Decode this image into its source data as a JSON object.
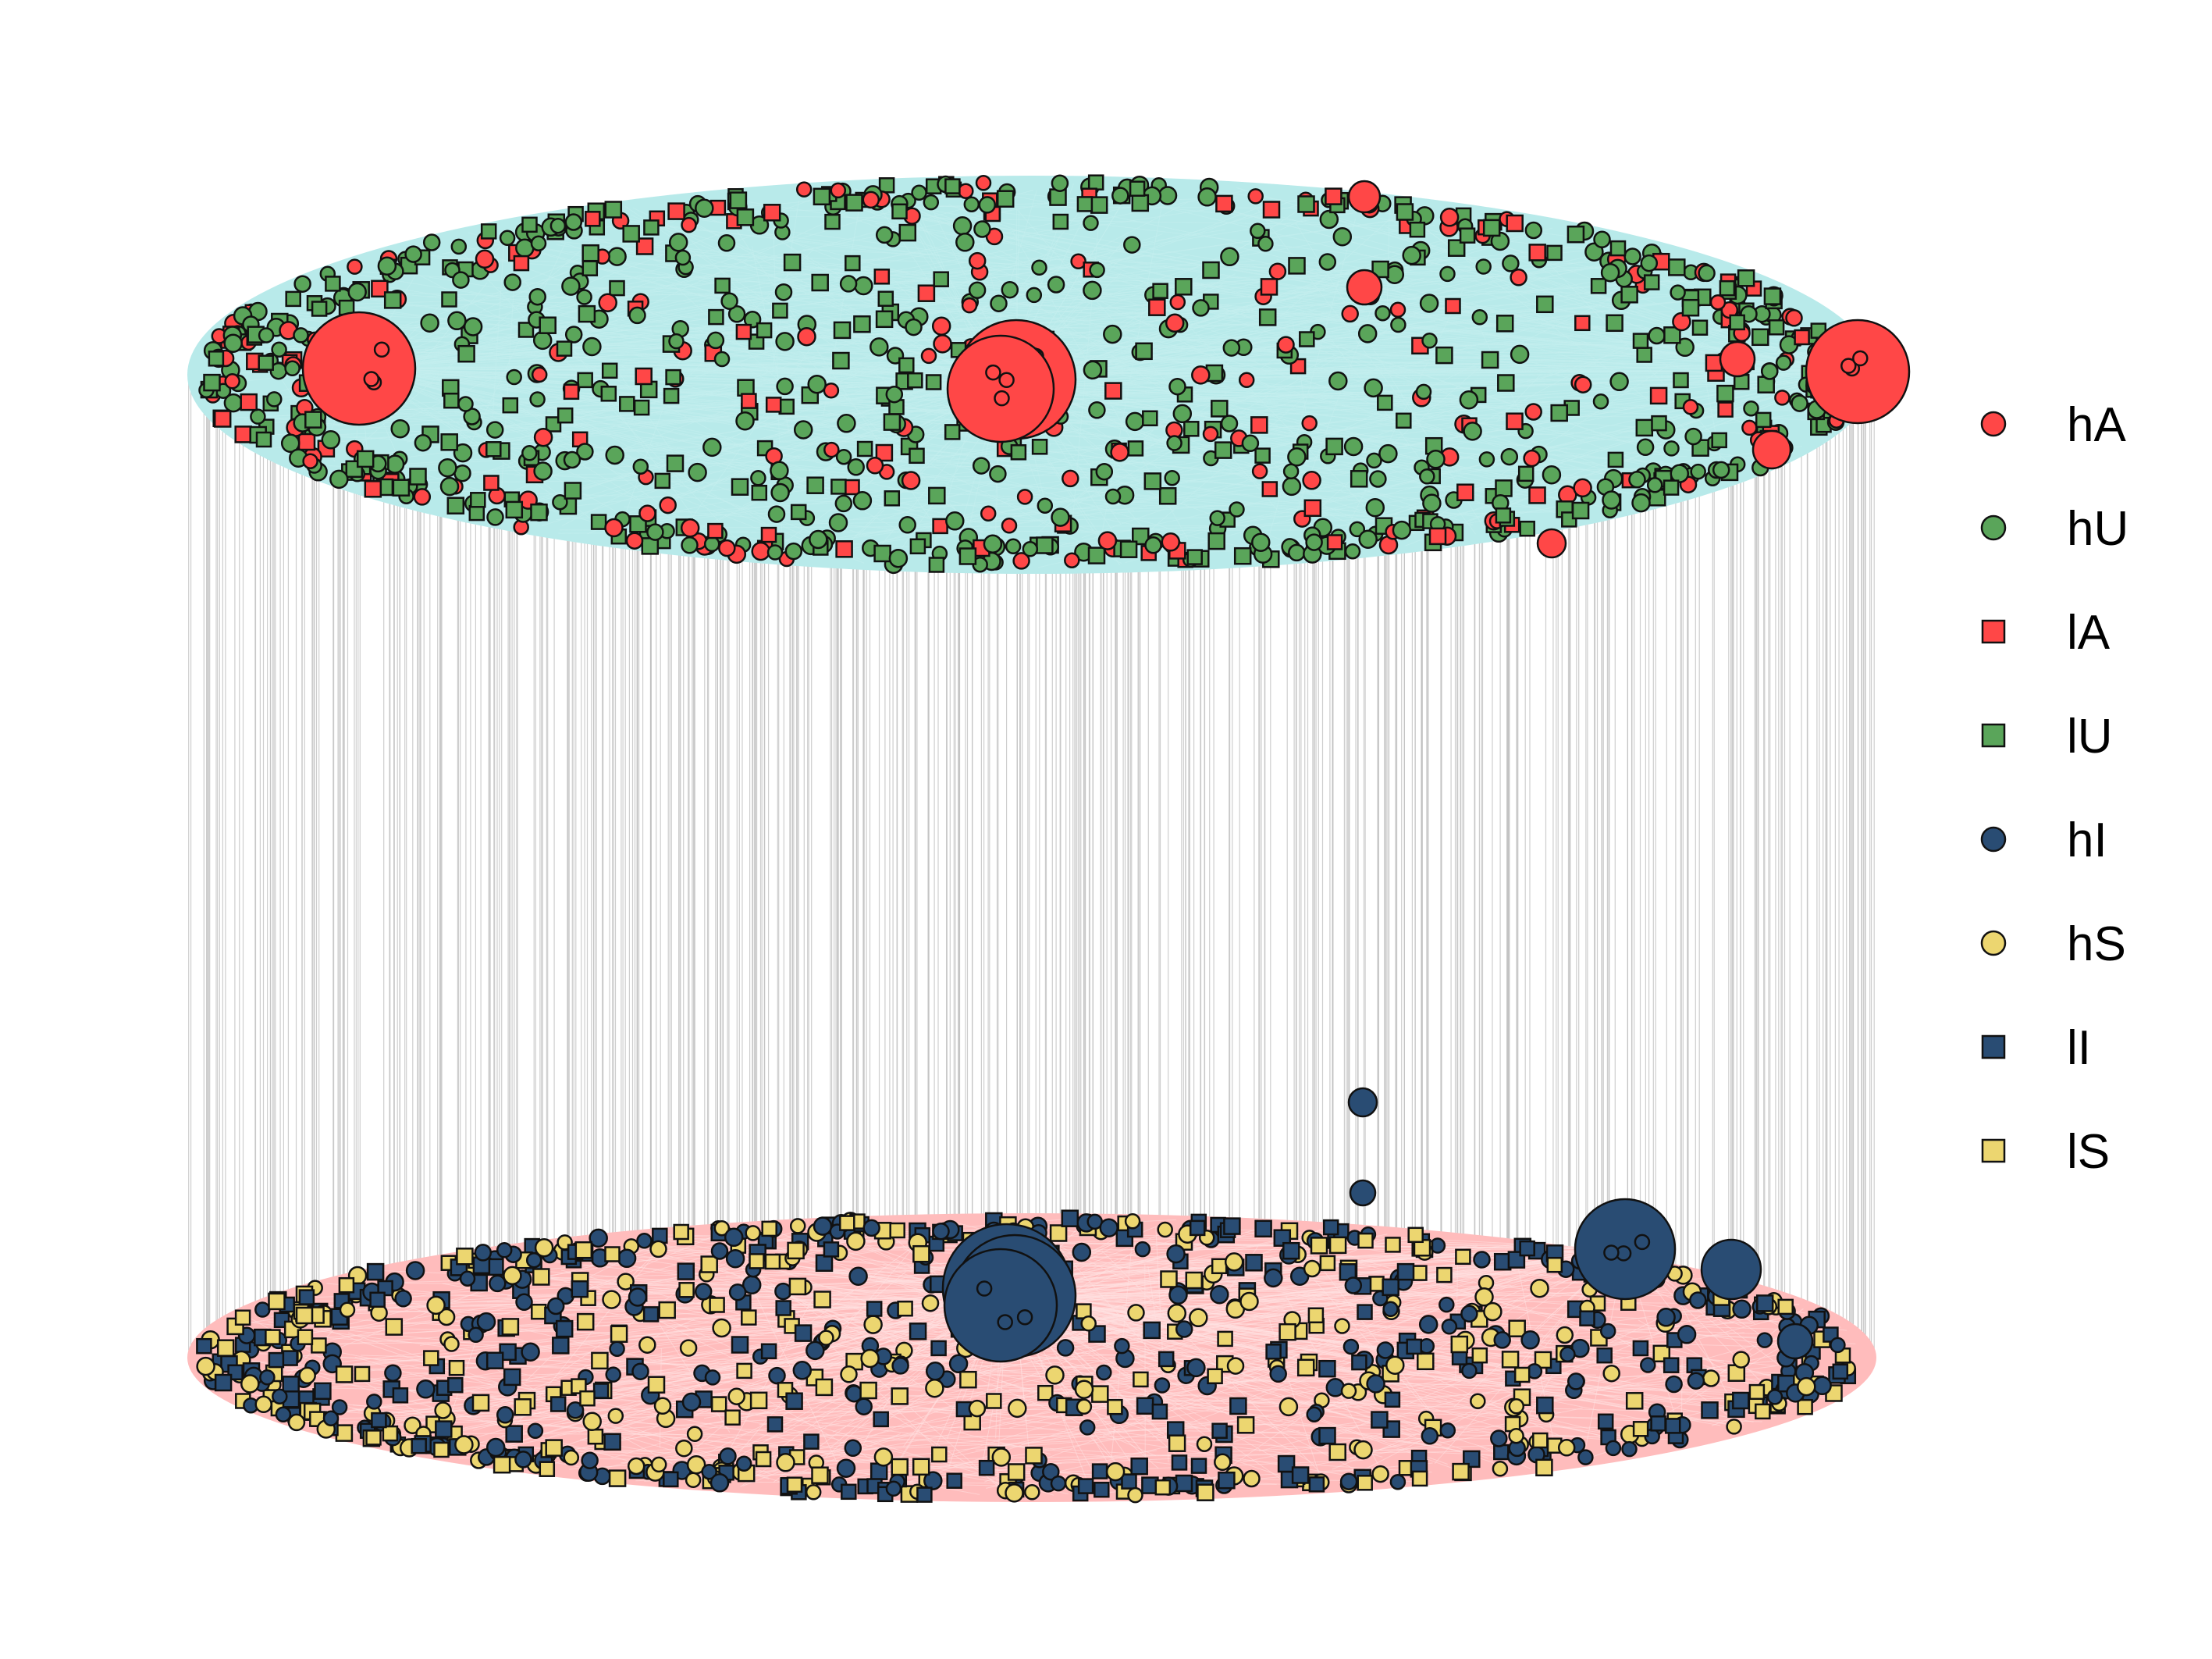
{
  "diagram": {
    "type": "two-layer multiplex network",
    "layers": [
      {
        "name": "",
        "fill": "#b8eaea",
        "edge_color": "#c4eeee",
        "categories": [
          "hA",
          "hU",
          "lA",
          "lU"
        ],
        "hubs": [
          {
            "category": "hA",
            "size": "very-large"
          },
          {
            "category": "hA",
            "size": "very-large"
          },
          {
            "category": "hA",
            "size": "very-large"
          },
          {
            "category": "hA",
            "size": "very-large"
          },
          {
            "category": "hA",
            "size": "medium"
          },
          {
            "category": "hA",
            "size": "medium"
          },
          {
            "category": "hA",
            "size": "medium"
          },
          {
            "category": "hA",
            "size": "medium"
          },
          {
            "category": "hA",
            "size": "medium"
          }
        ]
      },
      {
        "name": "",
        "fill": "#ffbcbc",
        "edge_color": "#ffd6d6",
        "categories": [
          "hI",
          "hS",
          "lI",
          "lS"
        ],
        "hubs": [
          {
            "category": "hI",
            "size": "very-large"
          },
          {
            "category": "hI",
            "size": "very-large"
          },
          {
            "category": "hI",
            "size": "very-large"
          },
          {
            "category": "hI",
            "size": "large"
          },
          {
            "category": "hI",
            "size": "large"
          },
          {
            "category": "hI",
            "size": "medium"
          },
          {
            "category": "hI",
            "size": "medium"
          },
          {
            "category": "hI",
            "size": "medium"
          }
        ]
      }
    ],
    "interlayer_edge_color": "#bdbdbd"
  },
  "legend": {
    "items": [
      {
        "label": "hA",
        "shape": "circle",
        "color": "#ff4747"
      },
      {
        "label": "hU",
        "shape": "circle",
        "color": "#5aa55a"
      },
      {
        "label": "lA",
        "shape": "square",
        "color": "#ff4747"
      },
      {
        "label": "lU",
        "shape": "square",
        "color": "#5aa55a"
      },
      {
        "label": "hI",
        "shape": "circle",
        "color": "#294c73"
      },
      {
        "label": "hS",
        "shape": "circle",
        "color": "#ecd670"
      },
      {
        "label": "lI",
        "shape": "square",
        "color": "#294c73"
      },
      {
        "label": "lS",
        "shape": "square",
        "color": "#ecd670"
      }
    ]
  }
}
